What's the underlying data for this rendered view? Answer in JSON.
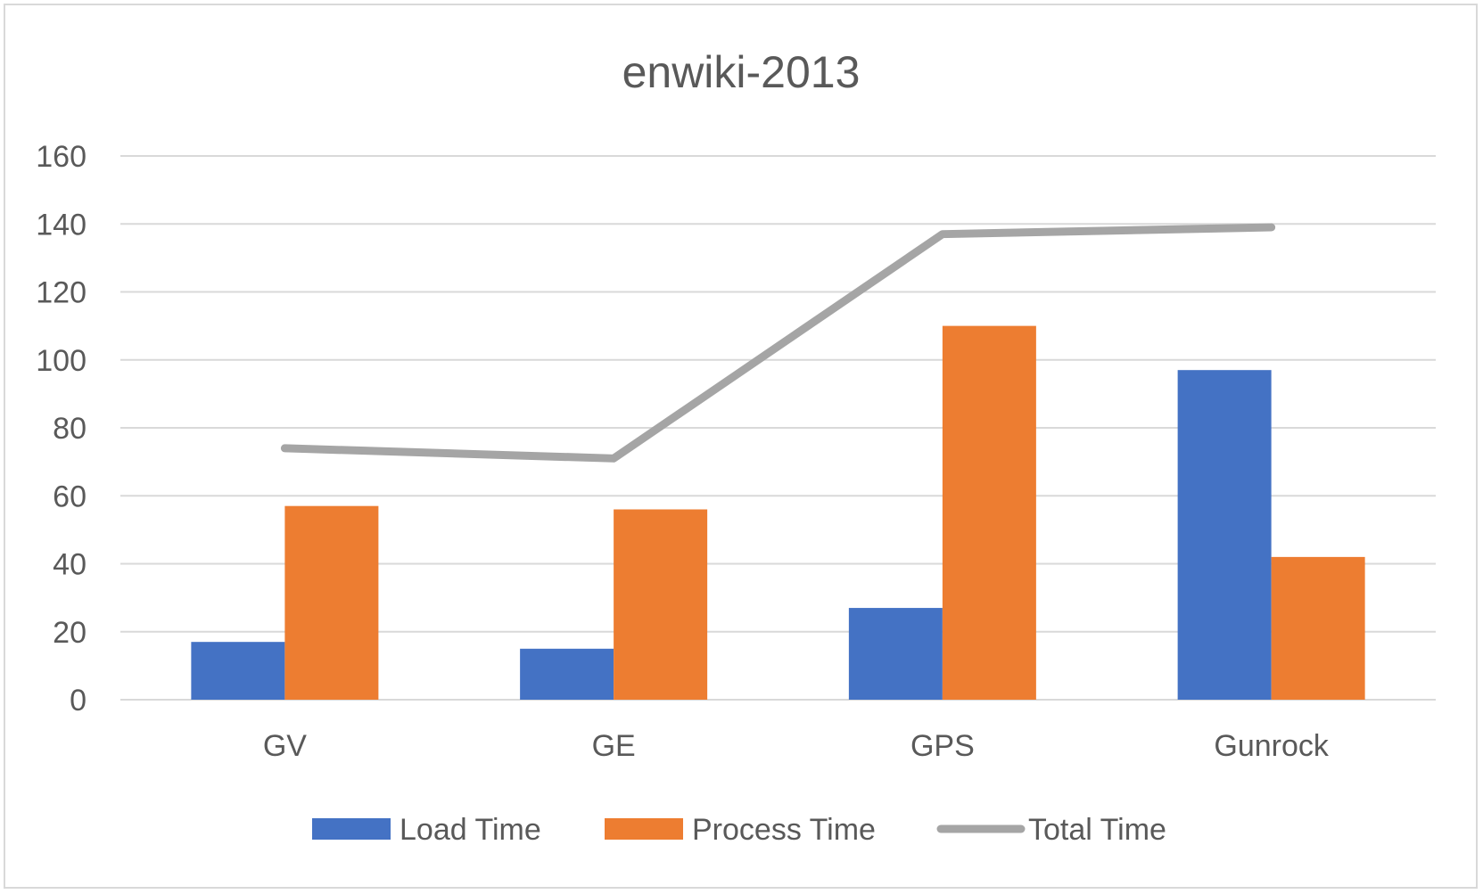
{
  "chart_data": {
    "type": "bar",
    "title": "enwiki-2013",
    "categories": [
      "GV",
      "GE",
      "GPS",
      "Gunrock"
    ],
    "series": [
      {
        "name": "Load Time",
        "type": "bar",
        "color": "#4472c4",
        "values": [
          17,
          15,
          27,
          97
        ]
      },
      {
        "name": "Process Time",
        "type": "bar",
        "color": "#ed7d31",
        "values": [
          57,
          56,
          110,
          42
        ]
      },
      {
        "name": "Total Time",
        "type": "line",
        "color": "#a5a5a5",
        "values": [
          74,
          71,
          137,
          139
        ]
      }
    ],
    "ylim": [
      0,
      160
    ],
    "yticks": [
      "0",
      "20",
      "40",
      "60",
      "80",
      "100",
      "120",
      "140",
      "160"
    ],
    "grid": true,
    "legend": "bottom-center"
  }
}
